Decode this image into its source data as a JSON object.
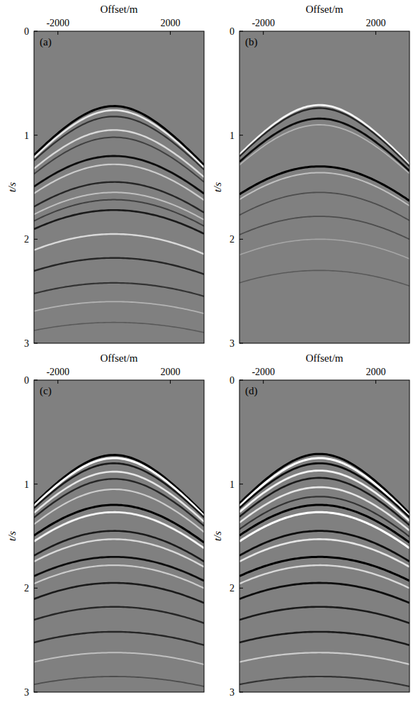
{
  "chart_data": [
    {
      "type": "seismic",
      "panel_label": "(a)",
      "x_label": "Offset/m",
      "y_label": "t/s",
      "xlim": [
        -2850,
        3200
      ],
      "ylim": [
        0,
        3
      ],
      "xticks": [
        -2000,
        2000
      ],
      "yticks": [
        0,
        1,
        2,
        3
      ],
      "source_offset": 0,
      "events": [
        {
          "t0": 0.72,
          "velocity": 3000,
          "amplitude": -1
        },
        {
          "t0": 0.76,
          "velocity": 3000,
          "amplitude": 0.8
        },
        {
          "t0": 0.82,
          "velocity": 3050,
          "amplitude": -0.6
        },
        {
          "t0": 0.95,
          "velocity": 3100,
          "amplitude": 0.7
        },
        {
          "t0": 1.02,
          "velocity": 3100,
          "amplitude": -0.5
        },
        {
          "t0": 1.2,
          "velocity": 3200,
          "amplitude": -0.9
        },
        {
          "t0": 1.28,
          "velocity": 3200,
          "amplitude": 0.6
        },
        {
          "t0": 1.45,
          "velocity": 3300,
          "amplitude": -0.7
        },
        {
          "t0": 1.55,
          "velocity": 3400,
          "amplitude": 0.5
        },
        {
          "t0": 1.62,
          "velocity": 3400,
          "amplitude": -0.5
        },
        {
          "t0": 1.72,
          "velocity": 3500,
          "amplitude": -0.8
        },
        {
          "t0": 1.95,
          "velocity": 3600,
          "amplitude": 0.7
        },
        {
          "t0": 2.18,
          "velocity": 3800,
          "amplitude": -0.7
        },
        {
          "t0": 2.42,
          "velocity": 4000,
          "amplitude": -0.6
        },
        {
          "t0": 2.6,
          "velocity": 4100,
          "amplitude": 0.4
        },
        {
          "t0": 2.8,
          "velocity": 4300,
          "amplitude": -0.3
        }
      ]
    },
    {
      "type": "seismic",
      "panel_label": "(b)",
      "x_label": "Offset/m",
      "y_label": "t/s",
      "xlim": [
        -2850,
        3200
      ],
      "ylim": [
        0,
        3
      ],
      "xticks": [
        -2000,
        2000
      ],
      "yticks": [
        0,
        1,
        2,
        3
      ],
      "source_offset": 0,
      "events": [
        {
          "t0": 0.71,
          "velocity": 3000,
          "amplitude": 0.9
        },
        {
          "t0": 0.74,
          "velocity": 3000,
          "amplitude": -0.7
        },
        {
          "t0": 0.84,
          "velocity": 3050,
          "amplitude": -0.9
        },
        {
          "t0": 0.9,
          "velocity": 3100,
          "amplitude": 0.4
        },
        {
          "t0": 1.3,
          "velocity": 3250,
          "amplitude": -1
        },
        {
          "t0": 1.36,
          "velocity": 3250,
          "amplitude": 0.5
        },
        {
          "t0": 1.55,
          "velocity": 3350,
          "amplitude": -0.4
        },
        {
          "t0": 1.78,
          "velocity": 3500,
          "amplitude": -0.4
        },
        {
          "t0": 2.0,
          "velocity": 3600,
          "amplitude": 0.3
        },
        {
          "t0": 2.3,
          "velocity": 3800,
          "amplitude": -0.3
        }
      ]
    },
    {
      "type": "seismic",
      "panel_label": "(c)",
      "x_label": "Offset/m",
      "y_label": "t/s",
      "xlim": [
        -2850,
        3200
      ],
      "ylim": [
        0,
        3
      ],
      "xticks": [
        -2000,
        2000
      ],
      "yticks": [
        0,
        1,
        2,
        3
      ],
      "source_offset": 0,
      "events": [
        {
          "t0": 0.72,
          "velocity": 3000,
          "amplitude": -1
        },
        {
          "t0": 0.75,
          "velocity": 3000,
          "amplitude": 1
        },
        {
          "t0": 0.8,
          "velocity": 3050,
          "amplitude": -0.8
        },
        {
          "t0": 0.88,
          "velocity": 3080,
          "amplitude": 0.8
        },
        {
          "t0": 0.95,
          "velocity": 3100,
          "amplitude": -0.7
        },
        {
          "t0": 1.05,
          "velocity": 3150,
          "amplitude": 0.6
        },
        {
          "t0": 1.2,
          "velocity": 3200,
          "amplitude": -1
        },
        {
          "t0": 1.27,
          "velocity": 3200,
          "amplitude": 0.9
        },
        {
          "t0": 1.45,
          "velocity": 3300,
          "amplitude": -0.8
        },
        {
          "t0": 1.53,
          "velocity": 3400,
          "amplitude": 0.7
        },
        {
          "t0": 1.7,
          "velocity": 3500,
          "amplitude": -0.9
        },
        {
          "t0": 1.78,
          "velocity": 3500,
          "amplitude": 0.6
        },
        {
          "t0": 1.95,
          "velocity": 3600,
          "amplitude": -0.8
        },
        {
          "t0": 2.18,
          "velocity": 3800,
          "amplitude": -0.7
        },
        {
          "t0": 2.42,
          "velocity": 4000,
          "amplitude": -0.7
        },
        {
          "t0": 2.62,
          "velocity": 4100,
          "amplitude": 0.5
        },
        {
          "t0": 2.85,
          "velocity": 4300,
          "amplitude": -0.4
        }
      ]
    },
    {
      "type": "seismic",
      "panel_label": "(d)",
      "x_label": "Offset/m",
      "y_label": "t/s",
      "xlim": [
        -2850,
        3200
      ],
      "ylim": [
        0,
        3
      ],
      "xticks": [
        -2000,
        2000
      ],
      "yticks": [
        0,
        1,
        2,
        3
      ],
      "source_offset": 0,
      "events": [
        {
          "t0": 0.71,
          "velocity": 3000,
          "amplitude": -1
        },
        {
          "t0": 0.75,
          "velocity": 3000,
          "amplitude": 1
        },
        {
          "t0": 0.8,
          "velocity": 3050,
          "amplitude": -0.9
        },
        {
          "t0": 0.87,
          "velocity": 3080,
          "amplitude": 0.9
        },
        {
          "t0": 0.94,
          "velocity": 3100,
          "amplitude": -0.8
        },
        {
          "t0": 1.03,
          "velocity": 3150,
          "amplitude": 0.8
        },
        {
          "t0": 1.12,
          "velocity": 3180,
          "amplitude": -0.6
        },
        {
          "t0": 1.2,
          "velocity": 3200,
          "amplitude": -1
        },
        {
          "t0": 1.27,
          "velocity": 3200,
          "amplitude": 1
        },
        {
          "t0": 1.45,
          "velocity": 3300,
          "amplitude": -0.9
        },
        {
          "t0": 1.53,
          "velocity": 3400,
          "amplitude": 0.8
        },
        {
          "t0": 1.7,
          "velocity": 3500,
          "amplitude": -1
        },
        {
          "t0": 1.78,
          "velocity": 3500,
          "amplitude": 0.7
        },
        {
          "t0": 1.95,
          "velocity": 3600,
          "amplitude": -0.9
        },
        {
          "t0": 2.18,
          "velocity": 3800,
          "amplitude": -0.8
        },
        {
          "t0": 2.42,
          "velocity": 4000,
          "amplitude": -0.8
        },
        {
          "t0": 2.62,
          "velocity": 4100,
          "amplitude": 0.6
        },
        {
          "t0": 2.85,
          "velocity": 4300,
          "amplitude": -0.6
        }
      ]
    }
  ]
}
